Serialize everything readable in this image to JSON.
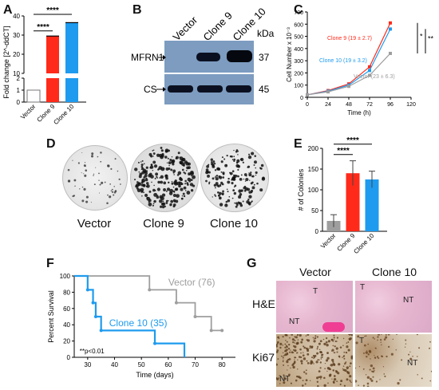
{
  "panels": [
    "A",
    "B",
    "C",
    "D",
    "E",
    "F",
    "G"
  ],
  "colors": {
    "vector": "#9e9e9e",
    "clone9": "#ff2a1a",
    "clone10": "#1e9bee",
    "blot_bg": "#7d9cc0"
  },
  "A": {
    "chart_data": {
      "type": "bar",
      "ylabel": "Fold change [2^-ddCT]",
      "categories": [
        "Vector",
        "Clone 9",
        "Clone 10"
      ],
      "values": [
        1,
        29.5,
        36.5
      ],
      "errors": [
        0,
        0.8,
        0.8
      ],
      "ylim": [
        0,
        40
      ],
      "axis_break": [
        2,
        10
      ],
      "yticks_top": [
        10,
        20,
        30,
        40
      ],
      "yticks_bottom": [
        0,
        1,
        2
      ],
      "significance": [
        {
          "pair": [
            "Vector",
            "Clone 9"
          ],
          "label": "****"
        },
        {
          "pair": [
            "Vector",
            "Clone 10"
          ],
          "label": "****"
        }
      ]
    }
  },
  "B": {
    "lanes": [
      "Vector",
      "Clone 9",
      "Clone 10"
    ],
    "unit": "kDa",
    "rows": [
      {
        "label": "MFRN1",
        "kda": "37"
      },
      {
        "label": "CS",
        "kda": "45"
      }
    ]
  },
  "C": {
    "chart_data": {
      "type": "line",
      "xlabel": "Time (h)",
      "ylabel": "Cell Number x 10⁻³",
      "x": [
        0,
        24,
        48,
        72,
        96
      ],
      "xticks": [
        0,
        24,
        48,
        72,
        96,
        120
      ],
      "yticks": [
        0,
        100,
        200,
        300,
        400,
        500,
        600,
        700
      ],
      "xlim": [
        0,
        120
      ],
      "ylim": [
        0,
        700
      ],
      "series": [
        {
          "name": "Clone 9 (19 ± 2.7)",
          "values": [
            20,
            55,
            110,
            250,
            610
          ]
        },
        {
          "name": "Clone 10 (19 ± 3.2)",
          "values": [
            20,
            50,
            100,
            220,
            560
          ]
        },
        {
          "name": "Vector (23 ± 6.3)",
          "values": [
            20,
            45,
            90,
            180,
            360
          ]
        }
      ],
      "significance": [
        "*",
        "**"
      ]
    }
  },
  "D": {
    "labels": [
      "Vector",
      "Clone 9",
      "Clone 10"
    ]
  },
  "E": {
    "chart_data": {
      "type": "bar",
      "ylabel": "# of Colonies",
      "categories": [
        "Vector",
        "Clone 9",
        "Clone 10"
      ],
      "values": [
        25,
        140,
        125
      ],
      "errors": [
        15,
        30,
        20
      ],
      "ylim": [
        0,
        200
      ],
      "yticks": [
        0,
        50,
        100,
        150,
        200
      ],
      "significance": [
        {
          "pair": [
            "Vector",
            "Clone 9"
          ],
          "label": "****"
        },
        {
          "pair": [
            "Vector",
            "Clone 10"
          ],
          "label": "****"
        }
      ]
    }
  },
  "F": {
    "chart_data": {
      "type": "line",
      "xlabel": "Time (days)",
      "ylabel": "Percent Survival",
      "xlim": [
        25,
        85
      ],
      "ylim": [
        0,
        100
      ],
      "xticks": [
        30,
        40,
        50,
        60,
        70,
        80
      ],
      "yticks": [
        0,
        20,
        40,
        60,
        80,
        100
      ],
      "series": [
        {
          "name": "Vector (76)",
          "steps": [
            [
              25,
              100
            ],
            [
              53,
              100
            ],
            [
              53,
              83
            ],
            [
              63,
              83
            ],
            [
              63,
              67
            ],
            [
              70,
              67
            ],
            [
              70,
              50
            ],
            [
              76,
              50
            ],
            [
              76,
              33
            ],
            [
              80,
              33
            ]
          ]
        },
        {
          "name": "Clone 10 (35)",
          "steps": [
            [
              25,
              100
            ],
            [
              30,
              100
            ],
            [
              30,
              83
            ],
            [
              32,
              83
            ],
            [
              32,
              67
            ],
            [
              33,
              67
            ],
            [
              33,
              50
            ],
            [
              35,
              50
            ],
            [
              35,
              33
            ],
            [
              55,
              33
            ],
            [
              55,
              17
            ],
            [
              66,
              17
            ],
            [
              66,
              0
            ]
          ]
        }
      ],
      "annotation": "**p<0.01"
    }
  },
  "G": {
    "columns": [
      "Vector",
      "Clone 10"
    ],
    "rows": [
      "H&E",
      "Ki67"
    ],
    "region_labels": {
      "tumor": "T",
      "nontumor": "NT"
    }
  }
}
